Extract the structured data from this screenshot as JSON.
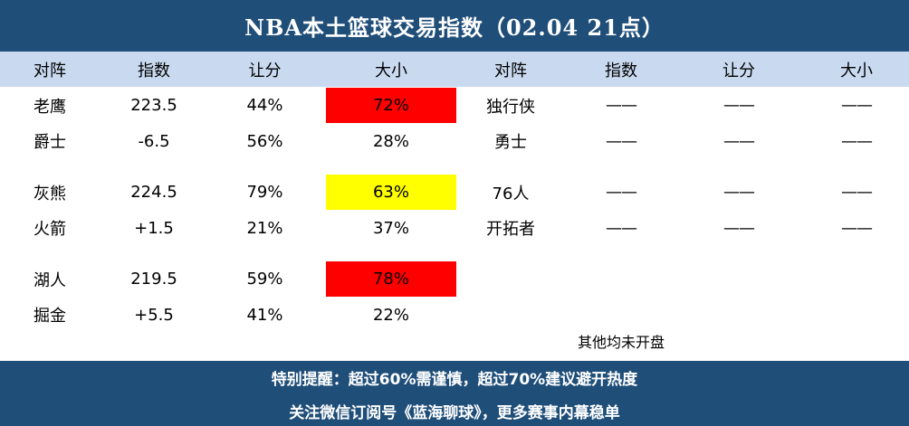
{
  "title": "NBA本土篮球交易指数（02.04 21点）",
  "headers": [
    "对阵",
    "指数",
    "让分",
    "大小",
    "对阵",
    "指数",
    "让分",
    "大小"
  ],
  "left_rows": [
    {
      "team": "老鹰",
      "index": "223.5",
      "spread": "44%",
      "ou": "72%",
      "highlight": "red"
    },
    {
      "team": "爵士",
      "index": "-6.5",
      "spread": "56%",
      "ou": "28%",
      "highlight": ""
    },
    {
      "team": "灰熊",
      "index": "224.5",
      "spread": "79%",
      "ou": "63%",
      "highlight": "yellow"
    },
    {
      "team": "火箭",
      "index": "+1.5",
      "spread": "21%",
      "ou": "37%",
      "highlight": ""
    },
    {
      "team": "湖人",
      "index": "219.5",
      "spread": "59%",
      "ou": "78%",
      "highlight": "red"
    },
    {
      "team": "掘金",
      "index": "+5.5",
      "spread": "41%",
      "ou": "22%",
      "highlight": ""
    }
  ],
  "right_rows": [
    {
      "team": "独行侠",
      "index": "——",
      "spread": "——",
      "ou": "——"
    },
    {
      "team": "勇士",
      "index": "——",
      "spread": "——",
      "ou": "——"
    },
    {
      "team": "76人",
      "index": "——",
      "spread": "——",
      "ou": "——"
    },
    {
      "team": "开拓者",
      "index": "——",
      "spread": "——",
      "ou": "——"
    }
  ],
  "note": "其他均未开盘",
  "footer": {
    "line1": "特别提醒：超过60%需谨慎，超过70%建议避开热度",
    "line2": "关注微信订阅号《蓝海聊球》，更多赛事内幕稳单"
  },
  "colors": {
    "header_bar": "#1f4e79",
    "subheader": "#c9daf0",
    "red": "#ff0000",
    "yellow": "#ffff00"
  }
}
